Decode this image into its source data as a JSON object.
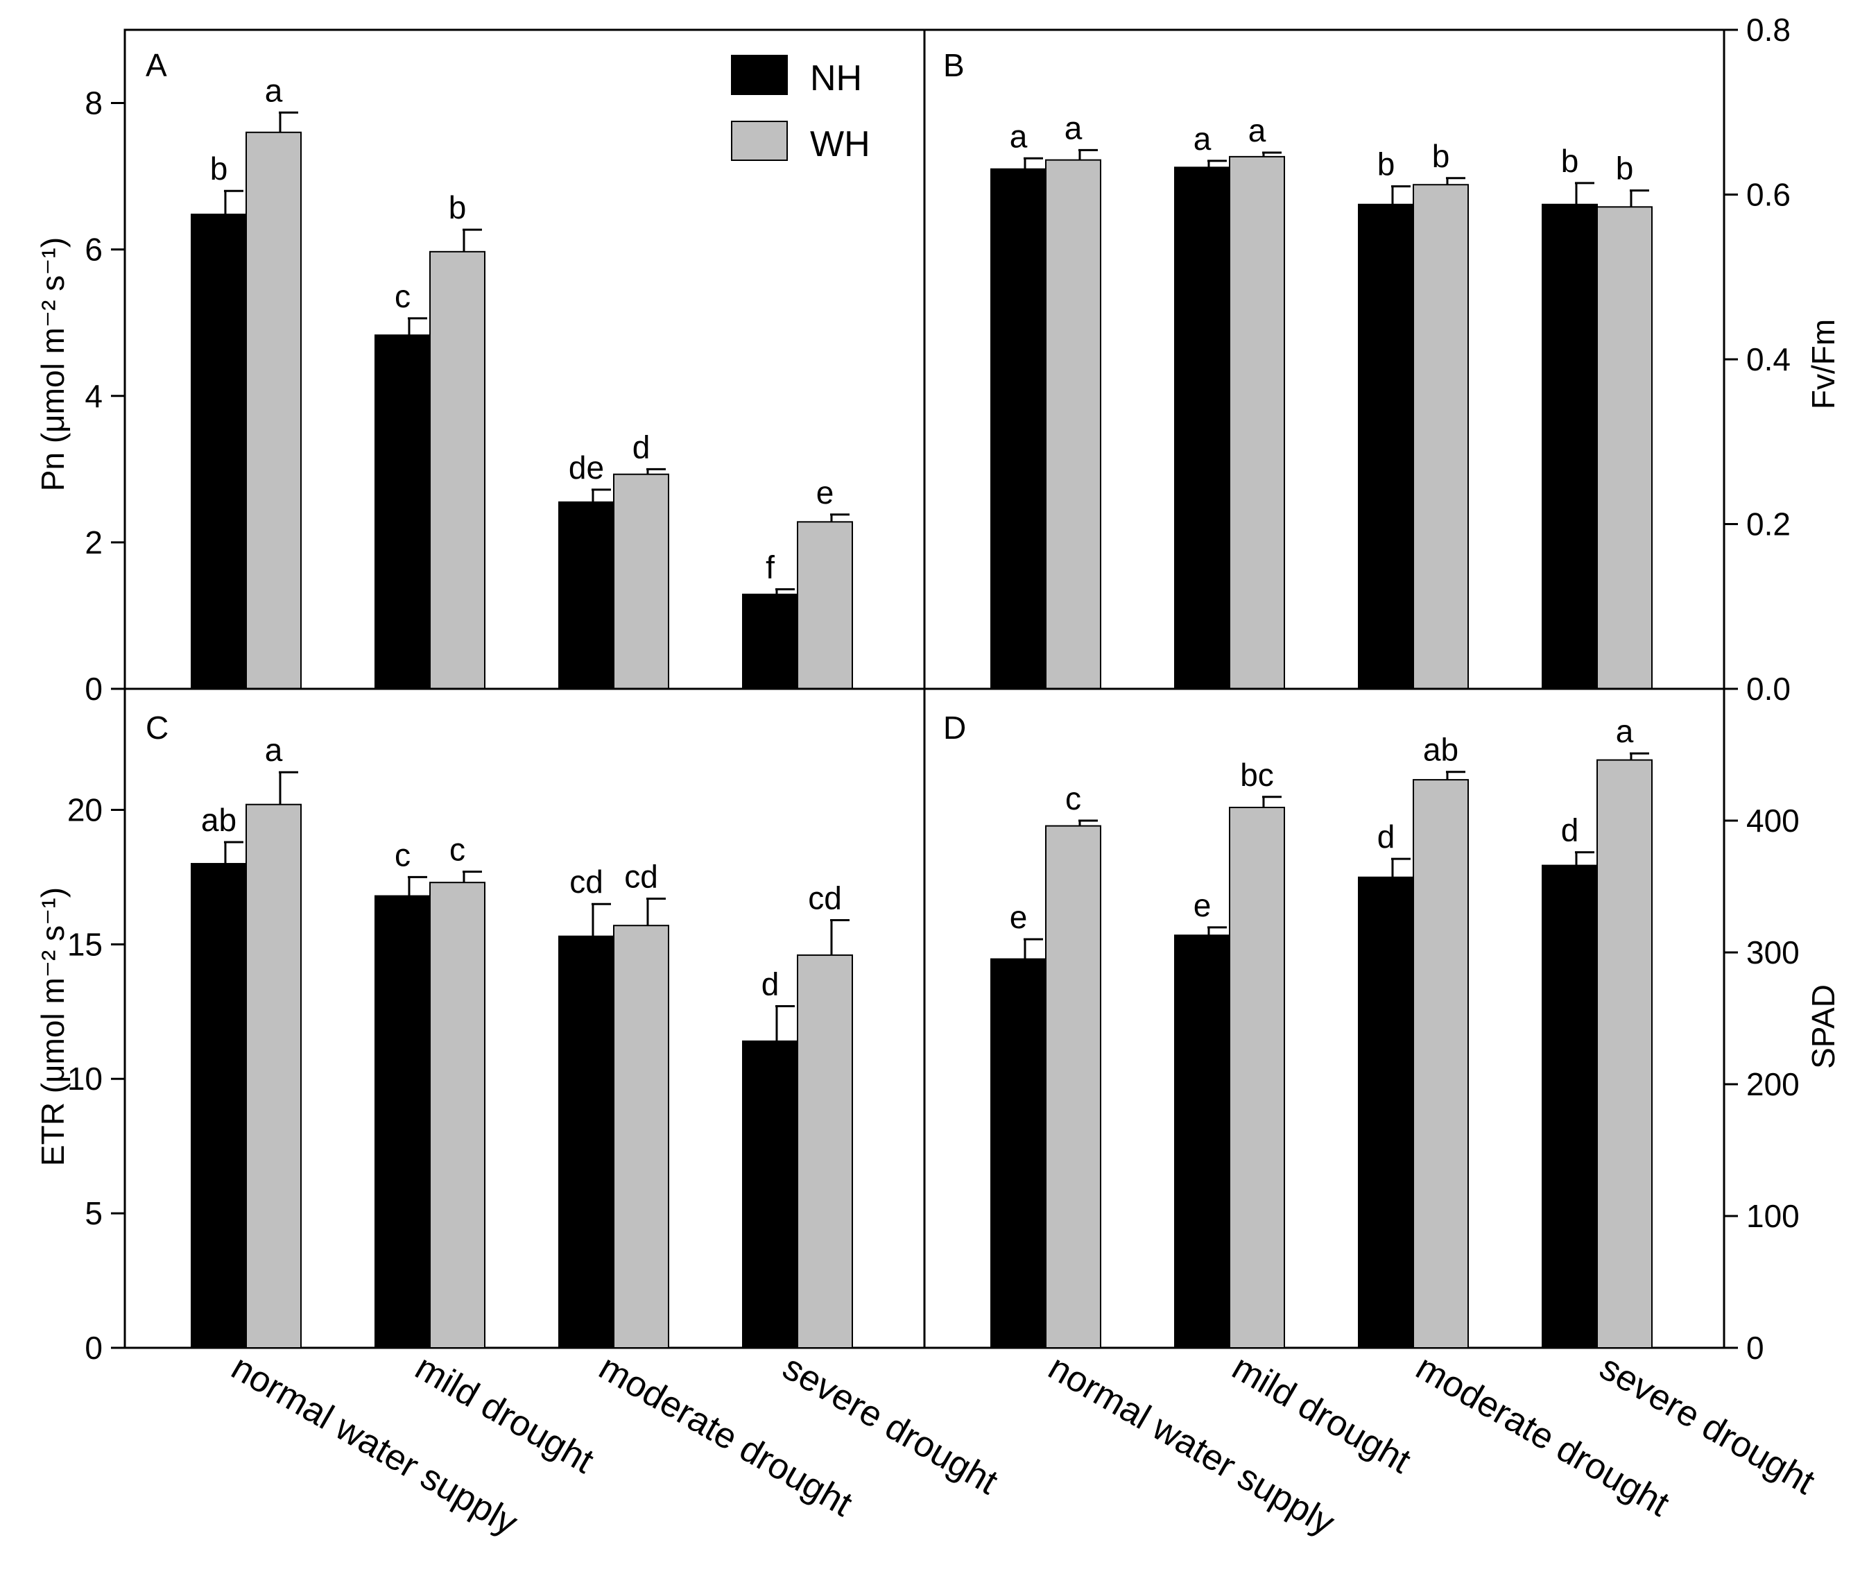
{
  "legend": [
    {
      "key": "NH",
      "label": "NH",
      "color": "#000000"
    },
    {
      "key": "WH",
      "label": "WH",
      "color": "#c0c0c0"
    }
  ],
  "categories": [
    "normal water supply",
    "mild drought",
    "moderate drought",
    "severe drought"
  ],
  "chart_data": [
    {
      "panel": "A",
      "type": "bar",
      "ylabel": "Pn (μmol m⁻² s⁻¹)",
      "axis_side": "left",
      "ylim": [
        0,
        9
      ],
      "yticks": [
        0,
        2,
        4,
        6,
        8
      ],
      "tick_labels": [
        "0",
        "2",
        "4",
        "6",
        "8"
      ],
      "series": [
        {
          "name": "NH",
          "values": [
            6.48,
            4.83,
            2.55,
            1.29
          ],
          "errors": [
            0.32,
            0.23,
            0.17,
            0.07
          ],
          "letters": [
            "b",
            "c",
            "de",
            "f"
          ]
        },
        {
          "name": "WH",
          "values": [
            7.6,
            5.97,
            2.93,
            2.28
          ],
          "errors": [
            0.27,
            0.3,
            0.07,
            0.1
          ],
          "letters": [
            "a",
            "b",
            "d",
            "e"
          ]
        }
      ]
    },
    {
      "panel": "B",
      "type": "bar",
      "ylabel": "Fv/Fm",
      "axis_side": "right",
      "ylim": [
        0,
        0.8
      ],
      "yticks": [
        0,
        0.2,
        0.4,
        0.6,
        0.8
      ],
      "tick_labels": [
        "0.0",
        "0.2",
        "0.4",
        "0.6",
        "0.8"
      ],
      "series": [
        {
          "name": "NH",
          "values": [
            0.631,
            0.633,
            0.588,
            0.588
          ],
          "errors": [
            0.013,
            0.008,
            0.022,
            0.026
          ],
          "letters": [
            "a",
            "a",
            "b",
            "b"
          ]
        },
        {
          "name": "WH",
          "values": [
            0.642,
            0.646,
            0.612,
            0.585
          ],
          "errors": [
            0.012,
            0.005,
            0.008,
            0.02
          ],
          "letters": [
            "a",
            "a",
            "b",
            "b"
          ]
        }
      ]
    },
    {
      "panel": "C",
      "type": "bar",
      "ylabel": "ETR (μmol m⁻² s⁻¹)",
      "axis_side": "left",
      "ylim": [
        0,
        24.5
      ],
      "yticks": [
        0,
        5,
        10,
        15,
        20
      ],
      "tick_labels": [
        "0",
        "5",
        "10",
        "15",
        "20"
      ],
      "series": [
        {
          "name": "NH",
          "values": [
            18.0,
            16.8,
            15.3,
            11.4
          ],
          "errors": [
            0.8,
            0.7,
            1.2,
            1.3
          ],
          "letters": [
            "ab",
            "c",
            "cd",
            "d"
          ]
        },
        {
          "name": "WH",
          "values": [
            20.2,
            17.3,
            15.7,
            14.6
          ],
          "errors": [
            1.2,
            0.4,
            1.0,
            1.3
          ],
          "letters": [
            "a",
            "c",
            "cd",
            "cd"
          ]
        }
      ]
    },
    {
      "panel": "D",
      "type": "bar",
      "ylabel": "SPAD",
      "axis_side": "right",
      "ylim": [
        0,
        500
      ],
      "yticks": [
        0,
        100,
        200,
        300,
        400
      ],
      "tick_labels": [
        "0",
        "100",
        "200",
        "300",
        "400"
      ],
      "series": [
        {
          "name": "NH",
          "values": [
            295,
            313,
            357,
            366
          ],
          "errors": [
            15,
            6,
            14,
            10
          ],
          "letters": [
            "e",
            "e",
            "d",
            "d"
          ]
        },
        {
          "name": "WH",
          "values": [
            396,
            410,
            431,
            446
          ],
          "errors": [
            4,
            8,
            6,
            5
          ],
          "letters": [
            "c",
            "bc",
            "ab",
            "a"
          ]
        }
      ]
    }
  ]
}
